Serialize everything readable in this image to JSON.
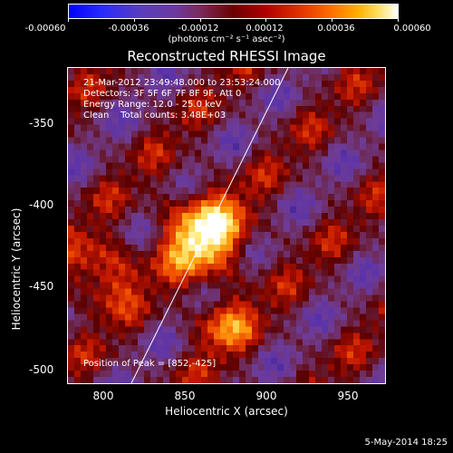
{
  "colorbar": {
    "ticks": [
      "-0.00060",
      "-0.00036",
      "-0.00012",
      "0.00012",
      "0.00036",
      "0.00060"
    ],
    "units": "(photons cm⁻² s⁻¹ asec⁻²)"
  },
  "title": "Reconstructed RHESSI Image",
  "info": {
    "line1": "21-Mar-2012 23:49:48.000 to 23:53:24.000",
    "line2": "Detectors: 3F 5F 6F 7F 8F 9F, Att 0",
    "line3": "Energy Range: 12.0 - 25.0 keV",
    "line4": "Clean    Total counts: 3.48E+03",
    "peak": "Position of Peak = [852,-425]"
  },
  "axes": {
    "xlabel": "Heliocentric X (arcsec)",
    "ylabel": "Heliocentric Y (arcsec)",
    "xticks": [
      "800",
      "850",
      "900",
      "950"
    ],
    "yticks": [
      "-350",
      "-400",
      "-450",
      "-500"
    ]
  },
  "datestamp": "5-May-2014 18:25",
  "colors": {
    "limb": "#ffffff",
    "background": "#000000"
  }
}
